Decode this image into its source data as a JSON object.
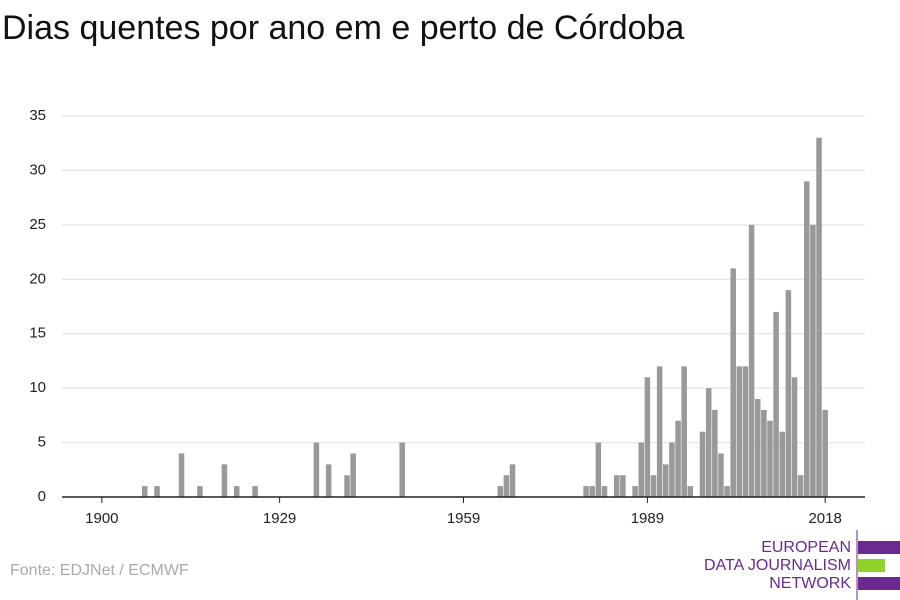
{
  "chart_data": {
    "type": "bar",
    "title": "Dias quentes por ano em e perto de Córdoba",
    "source": "Fonte: EDJNet / ECMWF",
    "logo": [
      "EUROPEAN",
      "DATA JOURNALISM",
      "NETWORK"
    ],
    "color": "#999999",
    "x": [
      1907,
      1909,
      1913,
      1916,
      1920,
      1922,
      1925,
      1935,
      1937,
      1940,
      1941,
      1949,
      1965,
      1966,
      1967,
      1979,
      1980,
      1981,
      1982,
      1984,
      1985,
      1987,
      1988,
      1989,
      1990,
      1991,
      1992,
      1993,
      1994,
      1995,
      1996,
      1998,
      1999,
      2000,
      2001,
      2002,
      2003,
      2004,
      2005,
      2006,
      2007,
      2008,
      2009,
      2010,
      2011,
      2012,
      2013,
      2014,
      2015,
      2016,
      2017,
      2018
    ],
    "values": [
      1,
      1,
      4,
      1,
      3,
      1,
      1,
      5,
      3,
      2,
      4,
      5,
      1,
      2,
      3,
      1,
      1,
      5,
      1,
      2,
      2,
      1,
      5,
      11,
      2,
      12,
      3,
      5,
      7,
      12,
      1,
      6,
      10,
      8,
      4,
      1,
      21,
      12,
      12,
      25,
      9,
      8,
      7,
      17,
      6,
      19,
      11,
      2,
      29,
      25,
      33,
      8
    ],
    "xlim": [
      1893.5,
      2024.5
    ],
    "xticks": [
      1900,
      1929,
      1959,
      1989,
      2018
    ],
    "ylim": [
      0,
      35
    ],
    "yticks": [
      0,
      5,
      10,
      15,
      20,
      25,
      30,
      35
    ],
    "grid": true
  }
}
